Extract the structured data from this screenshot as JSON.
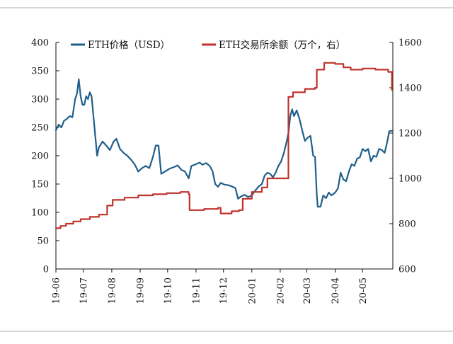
{
  "page": {
    "title": "",
    "footer": ""
  },
  "colors": {
    "eth_price": "#1f5f8b",
    "exchange_balance": "#c0322b",
    "axis": "#111111",
    "top_rule": "#b0b0b0"
  },
  "chart_data": {
    "type": "line",
    "x_type": "date",
    "x_tick_labels": [
      "19-06",
      "19-07",
      "19-08",
      "19-09",
      "19-10",
      "19-11",
      "19-12",
      "20-01",
      "20-02",
      "20-03",
      "20-04",
      "20-05"
    ],
    "xlim": [
      "2019-06-01",
      "2020-06-03"
    ],
    "left_axis": {
      "ylim": [
        0,
        400
      ],
      "ticks": [
        0,
        50,
        100,
        150,
        200,
        250,
        300,
        350,
        400
      ]
    },
    "right_axis": {
      "ylim": [
        600,
        1600
      ],
      "ticks": [
        600,
        800,
        1000,
        1200,
        1400,
        1600
      ]
    },
    "grid": false,
    "legend_position": "top",
    "series": [
      {
        "name": "ETH价格（USD）",
        "axis": "left",
        "color": "#1f5f8b",
        "points": [
          [
            "2019-06-01",
            245
          ],
          [
            "2019-06-04",
            255
          ],
          [
            "2019-06-07",
            250
          ],
          [
            "2019-06-10",
            262
          ],
          [
            "2019-06-13",
            265
          ],
          [
            "2019-06-16",
            270
          ],
          [
            "2019-06-19",
            268
          ],
          [
            "2019-06-22",
            300
          ],
          [
            "2019-06-24",
            310
          ],
          [
            "2019-06-26",
            335
          ],
          [
            "2019-06-28",
            305
          ],
          [
            "2019-06-30",
            290
          ],
          [
            "2019-07-02",
            290
          ],
          [
            "2019-07-04",
            305
          ],
          [
            "2019-07-06",
            300
          ],
          [
            "2019-07-08",
            312
          ],
          [
            "2019-07-10",
            305
          ],
          [
            "2019-07-12",
            270
          ],
          [
            "2019-07-14",
            235
          ],
          [
            "2019-07-16",
            200
          ],
          [
            "2019-07-18",
            215
          ],
          [
            "2019-07-22",
            225
          ],
          [
            "2019-07-26",
            218
          ],
          [
            "2019-07-30",
            210
          ],
          [
            "2019-08-03",
            225
          ],
          [
            "2019-08-06",
            230
          ],
          [
            "2019-08-10",
            212
          ],
          [
            "2019-08-14",
            205
          ],
          [
            "2019-08-18",
            200
          ],
          [
            "2019-08-22",
            193
          ],
          [
            "2019-08-26",
            185
          ],
          [
            "2019-08-30",
            172
          ],
          [
            "2019-09-03",
            178
          ],
          [
            "2019-09-07",
            182
          ],
          [
            "2019-09-11",
            178
          ],
          [
            "2019-09-15",
            198
          ],
          [
            "2019-09-18",
            218
          ],
          [
            "2019-09-21",
            218
          ],
          [
            "2019-09-24",
            168
          ],
          [
            "2019-09-28",
            172
          ],
          [
            "2019-10-03",
            177
          ],
          [
            "2019-10-08",
            180
          ],
          [
            "2019-10-12",
            183
          ],
          [
            "2019-10-16",
            175
          ],
          [
            "2019-10-20",
            172
          ],
          [
            "2019-10-24",
            160
          ],
          [
            "2019-10-27",
            182
          ],
          [
            "2019-11-01",
            185
          ],
          [
            "2019-11-05",
            188
          ],
          [
            "2019-11-08",
            184
          ],
          [
            "2019-11-12",
            187
          ],
          [
            "2019-11-16",
            182
          ],
          [
            "2019-11-19",
            173
          ],
          [
            "2019-11-22",
            150
          ],
          [
            "2019-11-25",
            145
          ],
          [
            "2019-11-28",
            152
          ],
          [
            "2019-12-02",
            149
          ],
          [
            "2019-12-06",
            148
          ],
          [
            "2019-12-10",
            146
          ],
          [
            "2019-12-14",
            143
          ],
          [
            "2019-12-17",
            124
          ],
          [
            "2019-12-20",
            128
          ],
          [
            "2019-12-24",
            131
          ],
          [
            "2019-12-28",
            127
          ],
          [
            "2020-01-01",
            130
          ],
          [
            "2020-01-04",
            137
          ],
          [
            "2020-01-08",
            145
          ],
          [
            "2020-01-12",
            150
          ],
          [
            "2020-01-15",
            165
          ],
          [
            "2020-01-18",
            170
          ],
          [
            "2020-01-21",
            168
          ],
          [
            "2020-01-24",
            162
          ],
          [
            "2020-01-27",
            170
          ],
          [
            "2020-01-30",
            182
          ],
          [
            "2020-02-02",
            190
          ],
          [
            "2020-02-05",
            205
          ],
          [
            "2020-02-08",
            225
          ],
          [
            "2020-02-10",
            240
          ],
          [
            "2020-02-12",
            270
          ],
          [
            "2020-02-14",
            282
          ],
          [
            "2020-02-16",
            270
          ],
          [
            "2020-02-19",
            280
          ],
          [
            "2020-02-22",
            265
          ],
          [
            "2020-02-25",
            245
          ],
          [
            "2020-02-28",
            226
          ],
          [
            "2020-03-02",
            232
          ],
          [
            "2020-03-05",
            235
          ],
          [
            "2020-03-08",
            200
          ],
          [
            "2020-03-10",
            198
          ],
          [
            "2020-03-12",
            130
          ],
          [
            "2020-03-13",
            110
          ],
          [
            "2020-03-16",
            110
          ],
          [
            "2020-03-19",
            130
          ],
          [
            "2020-03-22",
            125
          ],
          [
            "2020-03-25",
            135
          ],
          [
            "2020-03-28",
            130
          ],
          [
            "2020-04-01",
            135
          ],
          [
            "2020-04-04",
            142
          ],
          [
            "2020-04-07",
            170
          ],
          [
            "2020-04-10",
            158
          ],
          [
            "2020-04-13",
            155
          ],
          [
            "2020-04-16",
            172
          ],
          [
            "2020-04-19",
            185
          ],
          [
            "2020-04-22",
            182
          ],
          [
            "2020-04-25",
            195
          ],
          [
            "2020-04-28",
            197
          ],
          [
            "2020-05-01",
            212
          ],
          [
            "2020-05-04",
            208
          ],
          [
            "2020-05-07",
            212
          ],
          [
            "2020-05-10",
            190
          ],
          [
            "2020-05-13",
            200
          ],
          [
            "2020-05-16",
            198
          ],
          [
            "2020-05-19",
            212
          ],
          [
            "2020-05-22",
            210
          ],
          [
            "2020-05-25",
            205
          ],
          [
            "2020-05-28",
            225
          ],
          [
            "2020-05-30",
            243
          ],
          [
            "2020-06-01",
            244
          ],
          [
            "2020-06-03",
            244
          ]
        ]
      },
      {
        "name": "ETH交易所余额（万个，右）",
        "axis": "right",
        "color": "#c0322b",
        "points": [
          [
            "2019-06-01",
            780
          ],
          [
            "2019-06-06",
            790
          ],
          [
            "2019-06-12",
            800
          ],
          [
            "2019-06-20",
            810
          ],
          [
            "2019-06-28",
            820
          ],
          [
            "2019-07-08",
            830
          ],
          [
            "2019-07-18",
            840
          ],
          [
            "2019-07-25",
            840
          ],
          [
            "2019-07-27",
            880
          ],
          [
            "2019-08-02",
            905
          ],
          [
            "2019-08-15",
            915
          ],
          [
            "2019-08-30",
            925
          ],
          [
            "2019-09-15",
            930
          ],
          [
            "2019-09-30",
            935
          ],
          [
            "2019-10-15",
            940
          ],
          [
            "2019-10-24",
            930
          ],
          [
            "2019-10-25",
            860
          ],
          [
            "2019-11-10",
            865
          ],
          [
            "2019-11-25",
            870
          ],
          [
            "2019-11-28",
            845
          ],
          [
            "2019-12-10",
            855
          ],
          [
            "2019-12-18",
            860
          ],
          [
            "2019-12-22",
            910
          ],
          [
            "2020-01-01",
            940
          ],
          [
            "2020-01-12",
            960
          ],
          [
            "2020-01-18",
            1000
          ],
          [
            "2020-02-05",
            1000
          ],
          [
            "2020-02-09",
            1000
          ],
          [
            "2020-02-10",
            1360
          ],
          [
            "2020-02-15",
            1380
          ],
          [
            "2020-02-28",
            1395
          ],
          [
            "2020-03-10",
            1400
          ],
          [
            "2020-03-12",
            1480
          ],
          [
            "2020-03-20",
            1510
          ],
          [
            "2020-04-01",
            1505
          ],
          [
            "2020-04-10",
            1490
          ],
          [
            "2020-04-18",
            1480
          ],
          [
            "2020-05-01",
            1485
          ],
          [
            "2020-05-15",
            1480
          ],
          [
            "2020-05-29",
            1470
          ],
          [
            "2020-06-01",
            1470
          ],
          [
            "2020-06-02",
            1390
          ]
        ]
      }
    ]
  }
}
